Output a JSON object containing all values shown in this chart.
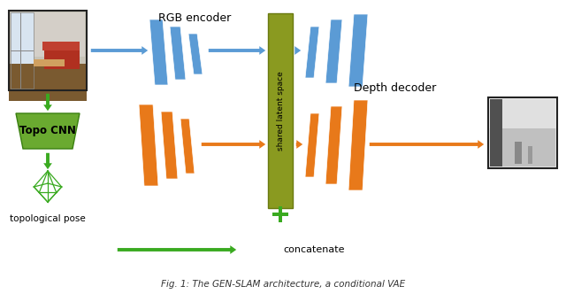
{
  "figsize": [
    6.4,
    3.32
  ],
  "dpi": 100,
  "bg_color": "#ffffff",
  "blue": "#5b9bd5",
  "orange": "#e8791a",
  "green": "#3aaa20",
  "green_box": "#6aaa30",
  "olive": "#8a9a20",
  "title_text": "RGB encoder",
  "depth_decoder_text": "Depth decoder",
  "topo_cnn_text": "Topo CNN",
  "topo_pose_text": "topological pose",
  "concat_text": "concatenate",
  "latent_text": "shared latent space",
  "caption": "Fig. 1: The GEN-SLAM architecture, a conditional VAE"
}
